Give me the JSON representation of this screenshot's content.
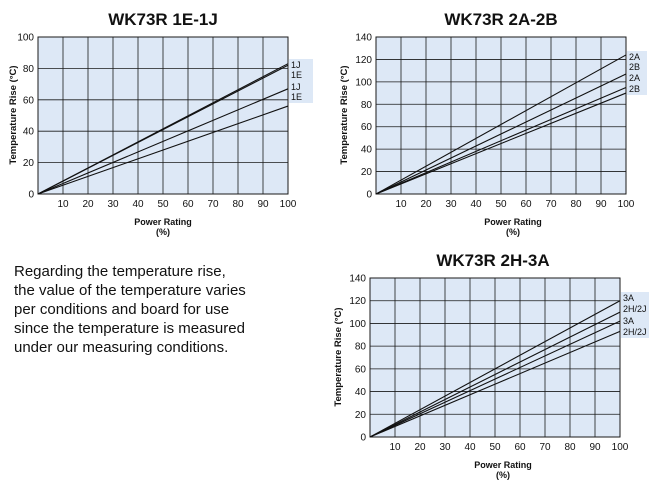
{
  "chart_data": [
    {
      "type": "line",
      "title": "WK73R 1E-1J",
      "xlabel": "Power Rating",
      "xunit": "(%)",
      "ylabel": "Temperature Rise (°C)",
      "xlim": [
        0,
        100
      ],
      "ylim": [
        0,
        100
      ],
      "xticks": [
        "10",
        "20",
        "30",
        "40",
        "50",
        "60",
        "70",
        "80",
        "90",
        "100"
      ],
      "yticks": [
        "0",
        "20",
        "40",
        "60",
        "80",
        "100"
      ],
      "grid": true,
      "series": [
        {
          "name": "1J",
          "x": [
            0,
            100
          ],
          "y": [
            0,
            83
          ]
        },
        {
          "name": "1E",
          "x": [
            0,
            100
          ],
          "y": [
            0,
            82
          ]
        },
        {
          "name": "1J",
          "x": [
            0,
            100
          ],
          "y": [
            0,
            67
          ]
        },
        {
          "name": "1E",
          "x": [
            0,
            100
          ],
          "y": [
            0,
            56
          ]
        }
      ]
    },
    {
      "type": "line",
      "title": "WK73R 2A-2B",
      "xlabel": "Power Rating",
      "xunit": "(%)",
      "ylabel": "Temperature Rise (°C)",
      "xlim": [
        0,
        100
      ],
      "ylim": [
        0,
        140
      ],
      "xticks": [
        "10",
        "20",
        "30",
        "40",
        "50",
        "60",
        "70",
        "80",
        "90",
        "100"
      ],
      "yticks": [
        "0",
        "20",
        "40",
        "60",
        "80",
        "100",
        "120",
        "140"
      ],
      "grid": true,
      "series": [
        {
          "name": "2A",
          "x": [
            0,
            100
          ],
          "y": [
            0,
            124
          ]
        },
        {
          "name": "2B",
          "x": [
            0,
            100
          ],
          "y": [
            0,
            107
          ]
        },
        {
          "name": "2A",
          "x": [
            0,
            100
          ],
          "y": [
            0,
            95
          ]
        },
        {
          "name": "2B",
          "x": [
            0,
            100
          ],
          "y": [
            0,
            90
          ]
        }
      ]
    },
    {
      "type": "line",
      "title": "WK73R 2H-3A",
      "xlabel": "Power Rating",
      "xunit": "(%)",
      "ylabel": "Temperature Rise (°C)",
      "xlim": [
        0,
        100
      ],
      "ylim": [
        0,
        140
      ],
      "xticks": [
        "10",
        "20",
        "30",
        "40",
        "50",
        "60",
        "70",
        "80",
        "90",
        "100"
      ],
      "yticks": [
        "0",
        "20",
        "40",
        "60",
        "80",
        "100",
        "120",
        "140"
      ],
      "grid": true,
      "series": [
        {
          "name": "3A",
          "x": [
            0,
            100
          ],
          "y": [
            0,
            120
          ]
        },
        {
          "name": "2H/2J",
          "x": [
            0,
            100
          ],
          "y": [
            0,
            110
          ]
        },
        {
          "name": "3A",
          "x": [
            0,
            100
          ],
          "y": [
            0,
            102
          ]
        },
        {
          "name": "2H/2J",
          "x": [
            0,
            100
          ],
          "y": [
            0,
            93
          ]
        }
      ]
    }
  ],
  "note": {
    "lines": [
      "Regarding the temperature rise,",
      "the value of the temperature varies",
      "per conditions and board for use",
      "since the temperature is measured",
      "under our measuring conditions."
    ]
  },
  "colors": {
    "plot_bg": "#dde8f6",
    "grid": "#1a1a1a",
    "line": "#111111",
    "legend_bg": "#dde8f6"
  }
}
